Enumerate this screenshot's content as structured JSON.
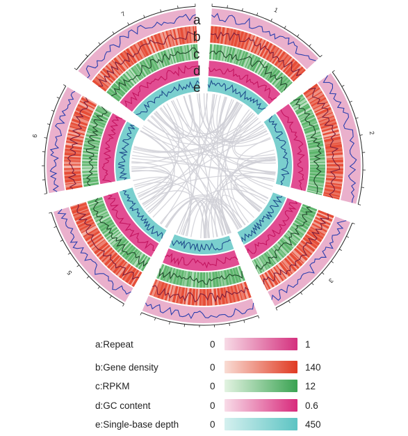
{
  "ring_letters": [
    "a",
    "b",
    "c",
    "d",
    "e"
  ],
  "legend": [
    {
      "key": "a",
      "label": "a:Repeat",
      "min": "0",
      "max": "1",
      "color_start": "#f7dbe6",
      "color_end": "#d4307e"
    },
    {
      "key": "b",
      "label": "b:Gene density",
      "min": "0",
      "max": "140",
      "color_start": "#f9dcd4",
      "color_end": "#e03a22"
    },
    {
      "key": "c",
      "label": "c:RPKM",
      "min": "0",
      "max": "12",
      "color_start": "#e3f3e2",
      "color_end": "#3aa352"
    },
    {
      "key": "d",
      "label": "d:GC content",
      "min": "0",
      "max": "0.6",
      "color_start": "#f8dce8",
      "color_end": "#d82a7c"
    },
    {
      "key": "e",
      "label": "e:Single-base depth",
      "min": "0",
      "max": "450",
      "color_start": "#d5f0ef",
      "color_end": "#5cc4c3"
    }
  ],
  "chromosomes": [
    {
      "label": "1"
    },
    {
      "label": "2"
    },
    {
      "label": "3"
    },
    {
      "label": "4"
    },
    {
      "label": "5"
    },
    {
      "label": "6"
    },
    {
      "label": "7"
    }
  ],
  "colors": {
    "repeat_ring": "#e8a7c6",
    "gene_density_ring": "#e5432c",
    "rpkm_ring": "#54b164",
    "gc_ring": "#de3a86",
    "depth_ring": "#6ccac9",
    "repeat_line": "#2b3fae",
    "gene_line": "#7d1c3c",
    "rpkm_line": "#1f4a2a",
    "gc_line": "#c4145f",
    "depth_line": "#1f4d8c",
    "link": "#cfcfd6"
  }
}
